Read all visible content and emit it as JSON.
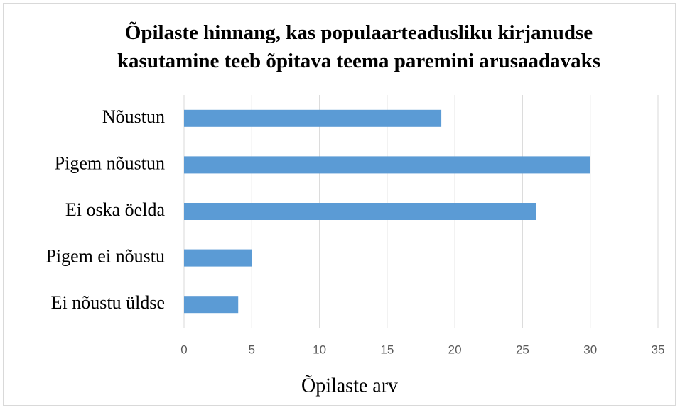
{
  "chart_data": {
    "type": "bar",
    "orientation": "horizontal",
    "title": "Õpilaste hinnang, kas populaarteadusliku kirjanudse kasutamine teeb õpitava teema paremini arusaadavaks",
    "x_label": "Õpilaste arv",
    "categories": [
      "Nõustun",
      "Pigem nõustun",
      "Ei oska öelda",
      "Pigem ei nõustu",
      "Ei nõustu üldse"
    ],
    "values": [
      19,
      30,
      26,
      5,
      4
    ],
    "color": "#5b9bd5",
    "xlim": [
      0,
      35
    ],
    "xticks": [
      0,
      5,
      10,
      15,
      20,
      25,
      30,
      35
    ],
    "grid": true
  }
}
